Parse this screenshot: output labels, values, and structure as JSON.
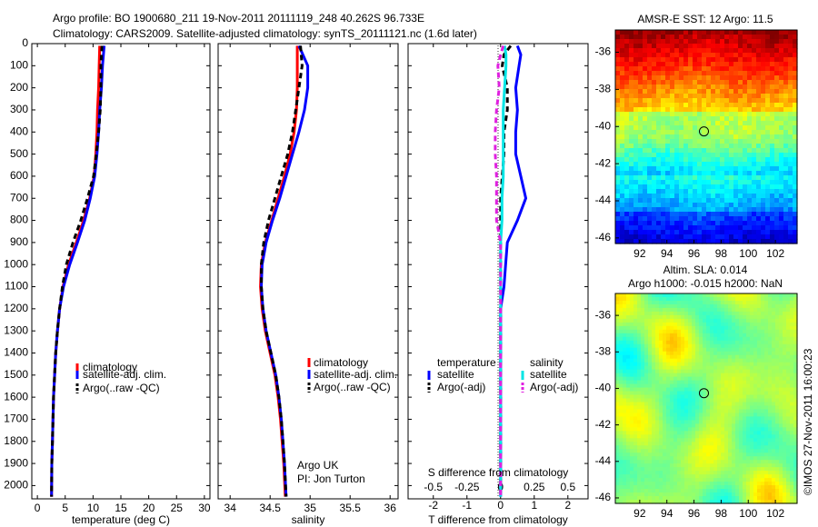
{
  "header": {
    "line1": "Argo profile: BO 1900680_211 19-Nov-2011 20111119_248 40.262S 96.733E",
    "line2": "Climatology: CARS2009. Satellite-adjusted climatology: synTS_20111121.nc (1.6d later)"
  },
  "side_label": "©IMOS 27-Nov-2011 16:00:23",
  "colors": {
    "climatology": "#ff0000",
    "satellite": "#0000ff",
    "argo": "#000000",
    "salinity_satellite": "#00e5e5",
    "salinity_argo": "#e020e0"
  },
  "chart_data": [
    {
      "type": "line",
      "id": "temperature",
      "xlabel": "temperature (deg C)",
      "ylabel": "",
      "xlim": [
        -1,
        31
      ],
      "ylim": [
        2060,
        0
      ],
      "y_reversed": true,
      "xticks": [
        "0",
        "5",
        "10",
        "15",
        "20",
        "25",
        "30"
      ],
      "xtick_values": [
        0,
        5,
        10,
        15,
        20,
        25,
        30
      ],
      "yticks": [
        "0",
        "100",
        "200",
        "300",
        "400",
        "500",
        "600",
        "700",
        "800",
        "900",
        "1000",
        "1100",
        "1200",
        "1300",
        "1400",
        "1500",
        "1600",
        "1700",
        "1800",
        "1900",
        "2000"
      ],
      "ytick_values": [
        0,
        100,
        200,
        300,
        400,
        500,
        600,
        700,
        800,
        900,
        1000,
        1100,
        1200,
        1300,
        1400,
        1500,
        1600,
        1700,
        1800,
        1900,
        2000
      ],
      "legend": [
        "climatology",
        "satellite-adj. clim.",
        "Argo(..raw -QC)"
      ],
      "series": [
        {
          "name": "climatology",
          "style": "solid",
          "color": "#ff0000",
          "x": [
            11.2,
            11.1,
            11.0,
            10.8,
            10.7,
            10.5,
            10.2,
            9.4,
            8.3,
            7.0,
            5.6,
            4.6,
            4.0,
            3.6,
            3.3,
            3.1,
            2.9,
            2.8,
            2.7,
            2.6,
            2.55
          ],
          "y": [
            10,
            100,
            200,
            300,
            400,
            500,
            600,
            700,
            800,
            900,
            1000,
            1100,
            1200,
            1300,
            1400,
            1500,
            1600,
            1700,
            1800,
            1900,
            2050
          ]
        },
        {
          "name": "satellite-adj. clim.",
          "style": "solid",
          "color": "#0000ff",
          "x": [
            12.0,
            11.7,
            11.5,
            11.2,
            11.0,
            10.7,
            10.3,
            9.5,
            8.5,
            7.2,
            5.8,
            4.7,
            4.0,
            3.6,
            3.3,
            3.1,
            2.9,
            2.8,
            2.7,
            2.6,
            2.55
          ],
          "y": [
            10,
            100,
            200,
            300,
            400,
            500,
            600,
            700,
            800,
            900,
            1000,
            1100,
            1200,
            1300,
            1400,
            1500,
            1600,
            1700,
            1800,
            1900,
            2050
          ]
        },
        {
          "name": "Argo(..raw -QC)",
          "style": "dashed",
          "color": "#000000",
          "x": [
            11.6,
            11.4,
            11.4,
            11.3,
            11.0,
            10.6,
            10.1,
            9.0,
            7.8,
            6.4,
            5.2,
            4.5,
            4.0,
            3.6,
            3.3,
            3.1,
            2.9,
            2.8,
            2.7,
            2.6,
            2.55
          ],
          "y": [
            10,
            100,
            200,
            300,
            400,
            500,
            600,
            700,
            800,
            900,
            1000,
            1100,
            1200,
            1300,
            1400,
            1500,
            1600,
            1700,
            1800,
            1900,
            2050
          ]
        }
      ]
    },
    {
      "type": "line",
      "id": "salinity",
      "xlabel": "salinity",
      "ylabel": "",
      "xlim": [
        33.85,
        36.1
      ],
      "ylim": [
        2060,
        0
      ],
      "y_reversed": true,
      "xticks": [
        "34",
        "34.5",
        "35",
        "35.5",
        "36"
      ],
      "xtick_values": [
        34,
        34.5,
        35,
        35.5,
        36
      ],
      "legend": [
        "climatology",
        "satellite-adj. clim.",
        "Argo(..raw -QC)"
      ],
      "annotations": [
        "Argo UK",
        "PI: Jon Turton"
      ],
      "series": [
        {
          "name": "climatology",
          "style": "solid",
          "color": "#ff0000",
          "x": [
            34.84,
            34.84,
            34.84,
            34.83,
            34.8,
            34.75,
            34.68,
            34.6,
            34.52,
            34.44,
            34.39,
            34.38,
            34.4,
            34.44,
            34.5,
            34.56,
            34.6,
            34.63,
            34.65,
            34.67,
            34.69
          ],
          "y": [
            10,
            100,
            200,
            300,
            400,
            500,
            600,
            700,
            800,
            900,
            1000,
            1100,
            1200,
            1300,
            1400,
            1500,
            1600,
            1700,
            1800,
            1900,
            2050
          ]
        },
        {
          "name": "satellite-adj. clim.",
          "style": "solid",
          "color": "#0000ff",
          "x": [
            34.86,
            34.97,
            34.97,
            34.93,
            34.86,
            34.78,
            34.7,
            34.62,
            34.53,
            34.45,
            34.4,
            34.39,
            34.41,
            34.45,
            34.51,
            34.57,
            34.61,
            34.64,
            34.66,
            34.68,
            34.7
          ],
          "y": [
            10,
            100,
            200,
            300,
            400,
            500,
            600,
            700,
            800,
            900,
            1000,
            1100,
            1200,
            1300,
            1400,
            1500,
            1600,
            1700,
            1800,
            1900,
            2050
          ]
        },
        {
          "name": "Argo(..raw -QC)",
          "style": "dashed",
          "color": "#000000",
          "x": [
            34.88,
            34.9,
            34.86,
            34.82,
            34.78,
            34.72,
            34.64,
            34.56,
            34.48,
            34.42,
            34.39,
            34.39,
            34.41,
            34.45,
            34.51,
            34.57,
            34.61,
            34.64,
            34.66,
            34.68,
            34.7
          ],
          "y": [
            10,
            100,
            200,
            300,
            400,
            500,
            600,
            700,
            800,
            900,
            1000,
            1100,
            1200,
            1300,
            1400,
            1500,
            1600,
            1700,
            1800,
            1900,
            2050
          ]
        }
      ]
    },
    {
      "type": "line",
      "id": "difference",
      "xlabel": "T difference from climatology",
      "xlabel_top": "S difference from climatology",
      "xlim": [
        -2.75,
        2.6
      ],
      "xlim_s": [
        -0.6875,
        0.65
      ],
      "ylim": [
        2060,
        0
      ],
      "y_reversed": true,
      "xticks": [
        "-2",
        "-1",
        "0",
        "1",
        "2"
      ],
      "xtick_values": [
        -2,
        -1,
        0,
        1,
        2
      ],
      "xticks_s": [
        "-0.5",
        "-0.25",
        "0",
        "0.25",
        "0.5"
      ],
      "legend_groups": [
        "temperature",
        "salinity"
      ],
      "legend": [
        "satellite",
        "Argo(-adj)",
        "satellite",
        "Argo(-adj)"
      ],
      "series": [
        {
          "name": "temperature satellite",
          "style": "solid",
          "color": "#0000ff",
          "x": [
            0.5,
            0.6,
            0.55,
            0.45,
            0.5,
            0.45,
            0.45,
            0.6,
            0.75,
            0.5,
            0.2,
            0.15,
            0.1,
            0.0,
            0.0,
            0.0,
            0.0,
            0.0,
            0.0,
            0.0,
            0.0
          ],
          "y": [
            10,
            50,
            100,
            200,
            300,
            400,
            500,
            600,
            700,
            800,
            900,
            1000,
            1100,
            1200,
            1300,
            1400,
            1500,
            1600,
            1700,
            1800,
            2050
          ]
        },
        {
          "name": "temperature Argo(-adj)",
          "style": "dashed",
          "color": "#000000",
          "x": [
            0.3,
            0.1,
            0.05,
            0.2,
            0.2,
            0.1,
            0.1,
            0.05,
            0.0,
            0.0,
            0.0,
            0.0,
            0.0,
            0.0,
            0.0,
            0.0,
            0.0,
            0.0,
            0.0,
            0.0,
            0.0
          ],
          "y": [
            10,
            50,
            100,
            200,
            300,
            400,
            500,
            600,
            700,
            800,
            900,
            1000,
            1100,
            1200,
            1300,
            1400,
            1500,
            1600,
            1700,
            1800,
            2050
          ]
        },
        {
          "name": "salinity satellite",
          "style": "solid",
          "color": "#00e5e5",
          "x": [
            0.03,
            0.04,
            0.04,
            0.03,
            0.02,
            0.02,
            0.02,
            0.02,
            0.01,
            0.01,
            0.0,
            0.0,
            0.0,
            0.0,
            0.0,
            0.0,
            0.0,
            0.0,
            0.0,
            0.0,
            0.0
          ],
          "y": [
            10,
            50,
            100,
            200,
            300,
            400,
            500,
            600,
            700,
            800,
            900,
            1000,
            1100,
            1200,
            1300,
            1400,
            1500,
            1600,
            1700,
            1800,
            2050
          ]
        },
        {
          "name": "salinity Argo(-adj)",
          "style": "dashed",
          "color": "#e020e0",
          "x": [
            0.02,
            0.0,
            -0.02,
            -0.01,
            -0.03,
            -0.04,
            -0.04,
            -0.03,
            -0.03,
            -0.03,
            0.0,
            0.0,
            0.0,
            0.0,
            0.0,
            0.0,
            0.0,
            0.0,
            0.0,
            0.0,
            0.0
          ],
          "y": [
            10,
            50,
            100,
            200,
            300,
            400,
            500,
            600,
            700,
            800,
            900,
            1000,
            1100,
            1200,
            1300,
            1400,
            1500,
            1600,
            1700,
            1800,
            2050
          ]
        }
      ]
    },
    {
      "type": "heatmap",
      "id": "sst_map",
      "title": "AMSR-E SST: 12 Argo: 11.5",
      "xlim": [
        90.2,
        103.6
      ],
      "ylim": [
        -46.3,
        -34.8
      ],
      "xticks": [
        "92",
        "94",
        "96",
        "98",
        "100",
        "102"
      ],
      "xtick_values": [
        92,
        94,
        96,
        98,
        100,
        102
      ],
      "yticks": [
        "-36",
        "-38",
        "-40",
        "-42",
        "-44",
        "-46"
      ],
      "ytick_values": [
        -36,
        -38,
        -40,
        -42,
        -44,
        -46
      ],
      "marker": {
        "lon": 96.733,
        "lat": -40.262
      },
      "colormap": "jet"
    },
    {
      "type": "heatmap",
      "id": "sla_map",
      "title": "Altim. SLA: 0.014",
      "subtitle": "Argo h1000: -0.015 h2000: NaN",
      "xlim": [
        90.2,
        103.6
      ],
      "ylim": [
        -46.3,
        -34.8
      ],
      "xticks": [
        "92",
        "94",
        "96",
        "98",
        "100",
        "102"
      ],
      "xtick_values": [
        92,
        94,
        96,
        98,
        100,
        102
      ],
      "yticks": [
        "-36",
        "-38",
        "-40",
        "-42",
        "-44",
        "-46"
      ],
      "ytick_values": [
        -36,
        -38,
        -40,
        -42,
        -44,
        -46
      ],
      "marker": {
        "lon": 96.733,
        "lat": -40.262
      },
      "colormap": "jet"
    }
  ]
}
